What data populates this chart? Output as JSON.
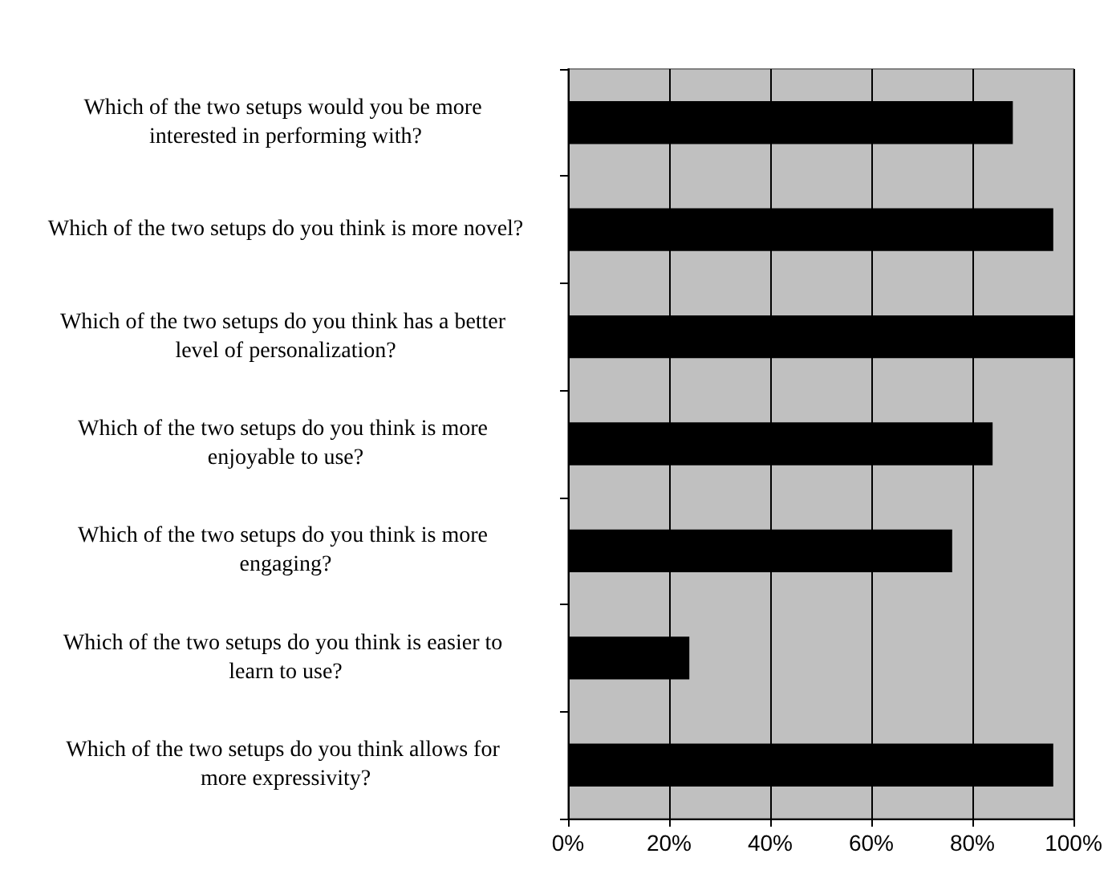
{
  "chart_data": {
    "type": "bar",
    "orientation": "horizontal",
    "categories": [
      "Which of the two setups would you be more interested in performing with?",
      "Which of the two setups do you think is more novel?",
      "Which of the two setups do you think has a better level of personalization?",
      "Which of the two setups do you think is more enjoyable to use?",
      "Which of the two setups do you think is more engaging?",
      "Which of the two setups do you think is easier to learn to use?",
      "Which of the two setups do you think allows for more expressivity?"
    ],
    "values": [
      88,
      96,
      100,
      84,
      76,
      24,
      96
    ],
    "color": "#000000",
    "xlim": [
      0,
      100
    ],
    "xticks": [
      {
        "value": 0,
        "label": "0%"
      },
      {
        "value": 20,
        "label": "20%"
      },
      {
        "value": 40,
        "label": "40%"
      },
      {
        "value": 60,
        "label": "60%"
      },
      {
        "value": 80,
        "label": "80%"
      },
      {
        "value": 100,
        "label": "100%"
      }
    ],
    "grid": "x"
  }
}
